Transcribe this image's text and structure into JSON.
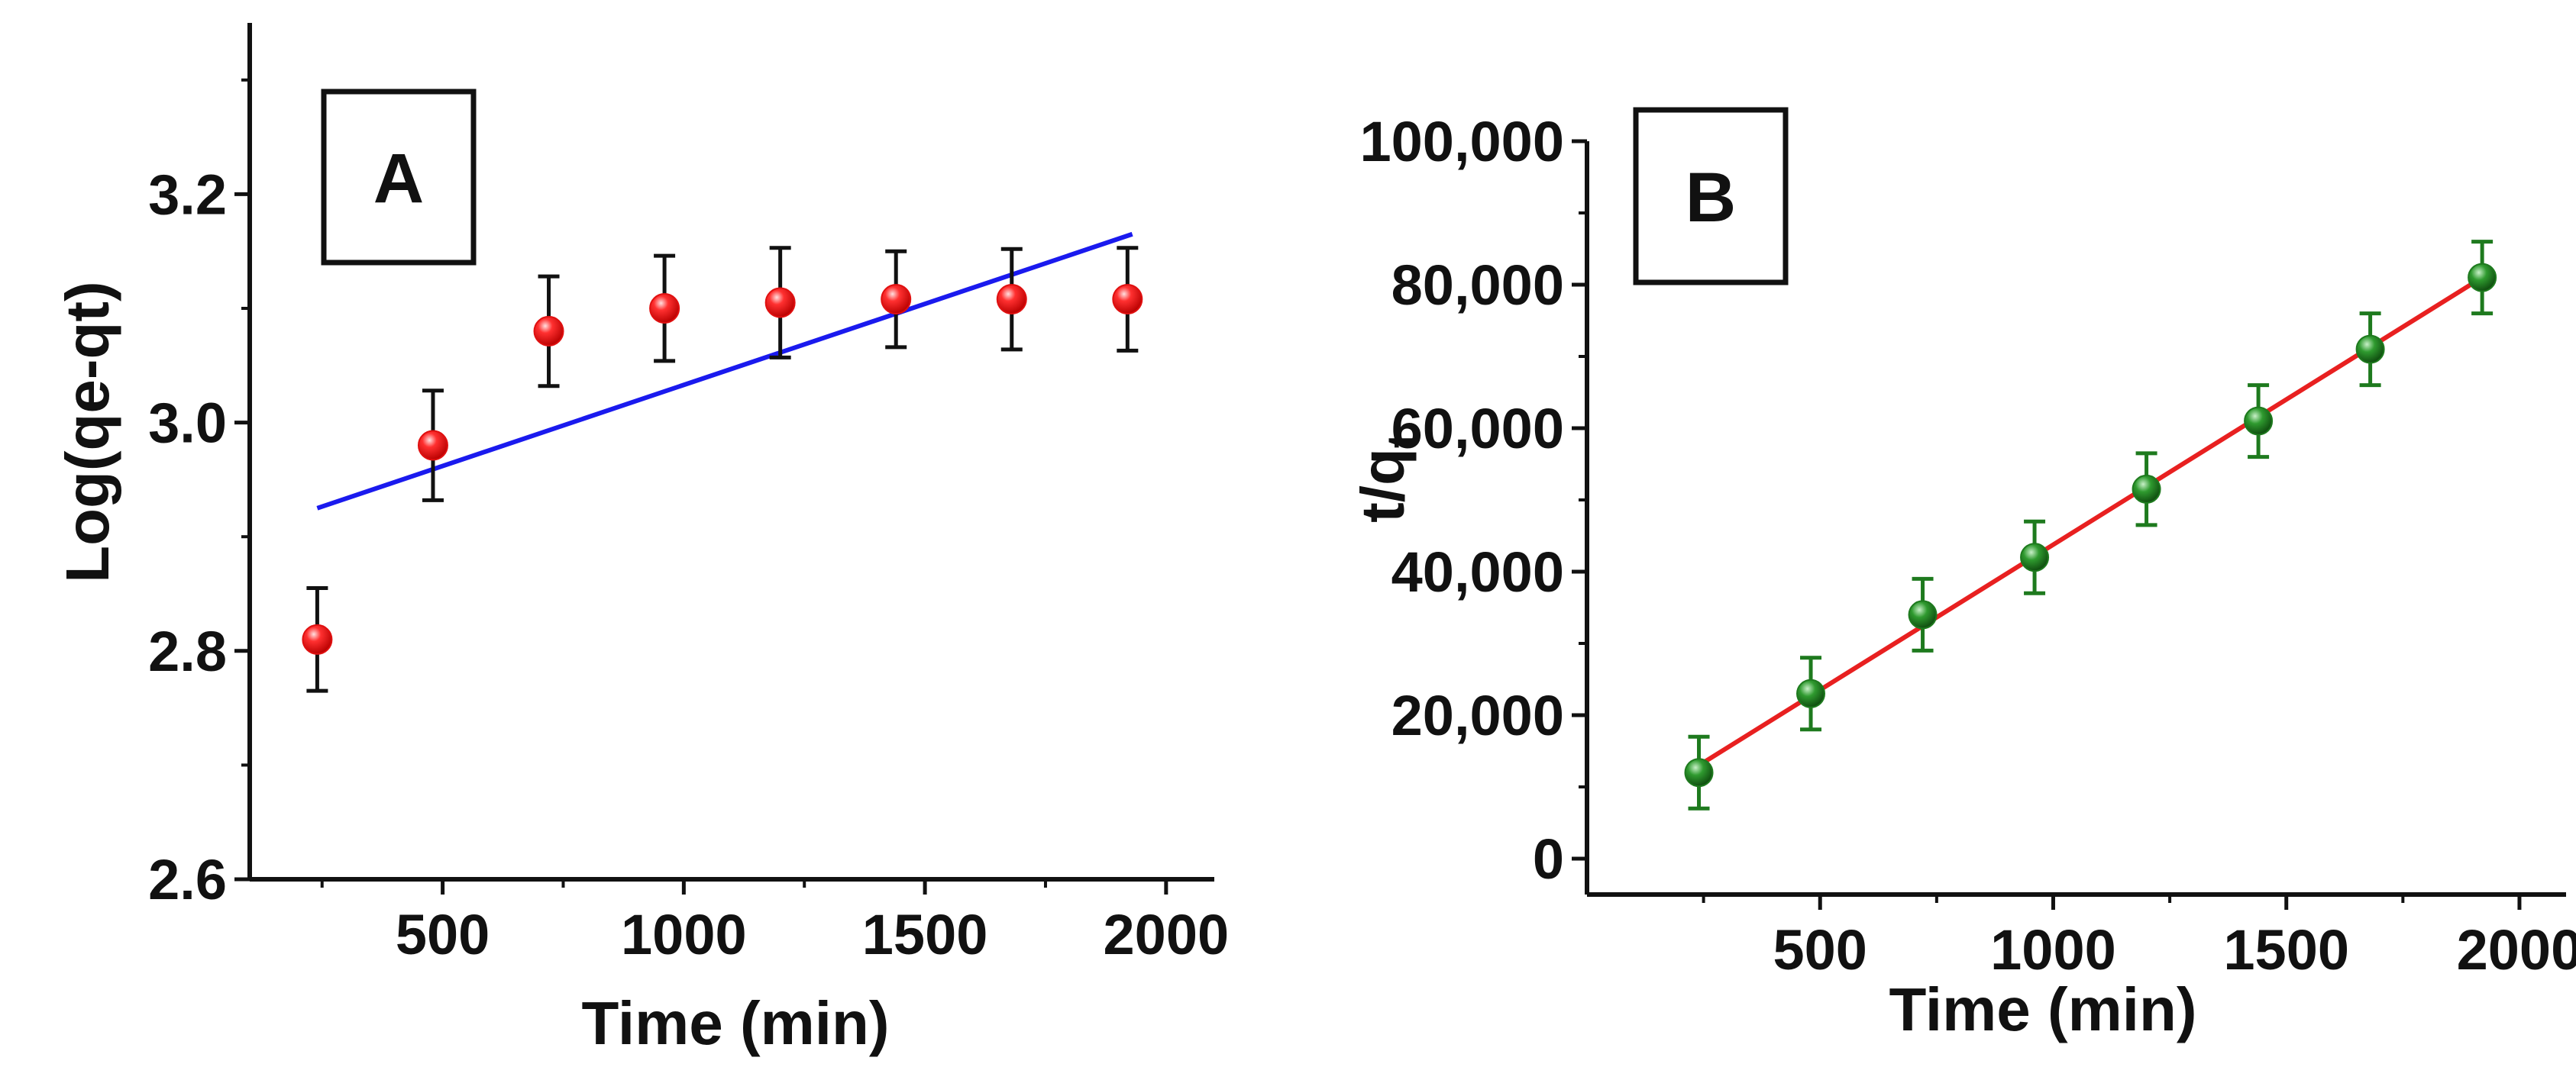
{
  "chart_data": [
    {
      "type": "scatter",
      "panel_label": "A",
      "xlabel": "Time (min)",
      "ylabel": "Log(qe-qt)",
      "xlim": [
        100,
        2100
      ],
      "ylim": [
        2.6,
        3.35
      ],
      "x_ticks": [
        500,
        1000,
        1500,
        2000
      ],
      "x_tick_labels": [
        "500",
        "1000",
        "1500",
        "2000"
      ],
      "y_ticks": [
        2.6,
        2.8,
        3.0,
        3.2
      ],
      "y_tick_labels": [
        "2.6",
        "2.8",
        "3.0",
        "3.2"
      ],
      "grid": false,
      "series": [
        {
          "name": "data",
          "color": "#e01010",
          "marker": "sphere",
          "x": [
            240,
            480,
            720,
            960,
            1200,
            1440,
            1680,
            1920
          ],
          "y": [
            2.81,
            2.98,
            3.08,
            3.1,
            3.105,
            3.108,
            3.108,
            3.108
          ],
          "error": [
            0.045,
            0.048,
            0.048,
            0.046,
            0.048,
            0.042,
            0.044,
            0.045
          ],
          "error_color": "#111111"
        }
      ],
      "fit": {
        "name": "linear fit",
        "color": "#1a1aee",
        "x": [
          240,
          1930
        ],
        "y": [
          2.925,
          3.165
        ]
      }
    },
    {
      "type": "scatter",
      "panel_label": "B",
      "xlabel": "Time (min)",
      "ylabel_main": "t/q",
      "ylabel_sub": "t",
      "xlim": [
        0,
        2100
      ],
      "ylim": [
        -5000,
        100000
      ],
      "x_ticks": [
        500,
        1000,
        1500,
        2000
      ],
      "x_tick_labels": [
        "500",
        "1000",
        "1500",
        "2000"
      ],
      "y_ticks": [
        0,
        20000,
        40000,
        60000,
        80000,
        100000
      ],
      "y_tick_labels": [
        "0",
        "20,000",
        "40,000",
        "60,000",
        "80,000",
        "100,000"
      ],
      "grid": false,
      "series": [
        {
          "name": "data",
          "color": "#1e7a1e",
          "marker": "sphere",
          "x": [
            240,
            480,
            720,
            960,
            1200,
            1440,
            1680,
            1920
          ],
          "y": [
            12000,
            23000,
            34000,
            42000,
            51500,
            61000,
            71000,
            81000
          ],
          "error": [
            5000,
            5000,
            5000,
            5000,
            5000,
            5000,
            5000,
            5000
          ],
          "error_color": "#1e7a1e"
        }
      ],
      "fit": {
        "name": "linear fit",
        "color": "#e82020",
        "x": [
          240,
          1920
        ],
        "y": [
          13000,
          81000
        ]
      }
    }
  ]
}
